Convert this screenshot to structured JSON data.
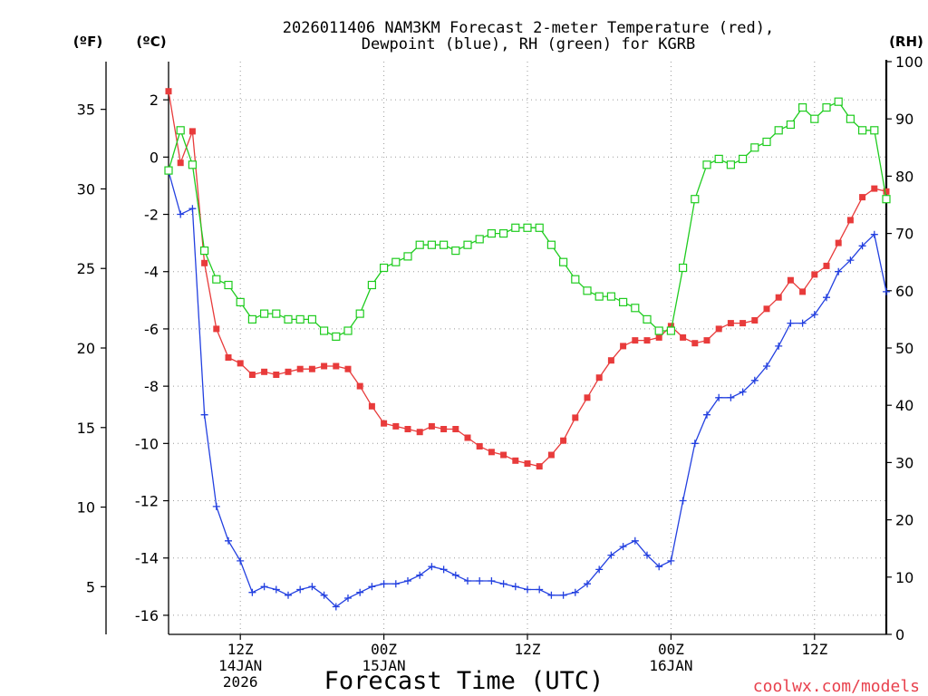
{
  "chart_data": {
    "type": "line",
    "title": [
      "2026011406 NAM3KM Forecast 2-meter Temperature (red),",
      "Dewpoint (blue), RH (green) for KGRB"
    ],
    "xlabel": "Forecast Time (UTC)",
    "grid": true,
    "x_range": [
      "2026-01-14T06:00Z",
      "2026-01-16T18:00Z"
    ],
    "x": [
      "2026-01-14T06:00Z",
      "2026-01-14T07:00Z",
      "2026-01-14T08:00Z",
      "2026-01-14T09:00Z",
      "2026-01-14T10:00Z",
      "2026-01-14T11:00Z",
      "2026-01-14T12:00Z",
      "2026-01-14T13:00Z",
      "2026-01-14T14:00Z",
      "2026-01-14T15:00Z",
      "2026-01-14T16:00Z",
      "2026-01-14T17:00Z",
      "2026-01-14T18:00Z",
      "2026-01-14T19:00Z",
      "2026-01-14T20:00Z",
      "2026-01-14T21:00Z",
      "2026-01-14T22:00Z",
      "2026-01-14T23:00Z",
      "2026-01-15T00:00Z",
      "2026-01-15T01:00Z",
      "2026-01-15T02:00Z",
      "2026-01-15T03:00Z",
      "2026-01-15T04:00Z",
      "2026-01-15T05:00Z",
      "2026-01-15T06:00Z",
      "2026-01-15T07:00Z",
      "2026-01-15T08:00Z",
      "2026-01-15T09:00Z",
      "2026-01-15T10:00Z",
      "2026-01-15T11:00Z",
      "2026-01-15T12:00Z",
      "2026-01-15T13:00Z",
      "2026-01-15T14:00Z",
      "2026-01-15T15:00Z",
      "2026-01-15T16:00Z",
      "2026-01-15T17:00Z",
      "2026-01-15T18:00Z",
      "2026-01-15T19:00Z",
      "2026-01-15T20:00Z",
      "2026-01-15T21:00Z",
      "2026-01-15T22:00Z",
      "2026-01-15T23:00Z",
      "2026-01-16T00:00Z",
      "2026-01-16T01:00Z",
      "2026-01-16T02:00Z",
      "2026-01-16T03:00Z",
      "2026-01-16T04:00Z",
      "2026-01-16T05:00Z",
      "2026-01-16T06:00Z",
      "2026-01-16T07:00Z",
      "2026-01-16T08:00Z",
      "2026-01-16T09:00Z",
      "2026-01-16T10:00Z",
      "2026-01-16T11:00Z",
      "2026-01-16T12:00Z",
      "2026-01-16T13:00Z",
      "2026-01-16T14:00Z",
      "2026-01-16T15:00Z",
      "2026-01-16T16:00Z",
      "2026-01-16T17:00Z",
      "2026-01-16T18:00Z"
    ],
    "x_ticks": [
      {
        "time": "2026-01-14T12:00Z",
        "label": [
          "12Z",
          "14JAN",
          "2026"
        ]
      },
      {
        "time": "2026-01-15T00:00Z",
        "label": [
          "00Z",
          "15JAN"
        ]
      },
      {
        "time": "2026-01-15T12:00Z",
        "label": [
          "12Z"
        ]
      },
      {
        "time": "2026-01-16T00:00Z",
        "label": [
          "00Z",
          "16JAN"
        ]
      },
      {
        "time": "2026-01-16T12:00Z",
        "label": [
          "12Z"
        ]
      }
    ],
    "y_left": {
      "label_F": "(ºF)",
      "label_C": "(ºC)",
      "range_F": [
        2,
        38
      ],
      "ticks_F": [
        35,
        30,
        25,
        20,
        15,
        10,
        5
      ],
      "ticks_C": [
        2,
        0,
        -2,
        -4,
        -6,
        -8,
        -10,
        -12,
        -14,
        -16
      ],
      "series": [
        {
          "color": "#e83b3b",
          "values": [
            2.3,
            -0.2,
            0.9,
            -3.7,
            -6.0,
            -7.0,
            -7.2,
            -7.6,
            -7.5,
            -7.6,
            -7.5,
            -7.4,
            -7.4,
            -7.3,
            -7.3,
            -7.4,
            -8.0,
            -8.7,
            -9.3,
            -9.4,
            -9.5,
            -9.6,
            -9.4,
            -9.5,
            -9.5,
            -9.8,
            -10.1,
            -10.3,
            -10.4,
            -10.6,
            -10.7,
            -10.8,
            -10.4,
            -9.9,
            -9.1,
            -8.4,
            -7.7,
            -7.1,
            -6.6,
            -6.4,
            -6.4,
            -6.3,
            -5.9,
            -6.3,
            -6.5,
            -6.4,
            -6.0,
            -5.8,
            -5.8,
            -5.7,
            -5.3,
            -4.9,
            -4.3,
            -4.7,
            -4.1,
            -3.8,
            -3.0,
            -2.2,
            -1.4,
            -1.1,
            -1.2
          ]
        },
        {
          "color": "#2340e0",
          "values": [
            -0.5,
            -2.0,
            -1.8,
            -9.0,
            -12.2,
            -13.4,
            -14.1,
            -15.2,
            -15.0,
            -15.1,
            -15.3,
            -15.1,
            -15.0,
            -15.3,
            -15.7,
            -15.4,
            -15.2,
            -15.0,
            -14.9,
            -14.9,
            -14.8,
            -14.6,
            -14.3,
            -14.4,
            -14.6,
            -14.8,
            -14.8,
            -14.8,
            -14.9,
            -15.0,
            -15.1,
            -15.1,
            -15.3,
            -15.3,
            -15.2,
            -14.9,
            -14.4,
            -13.9,
            -13.6,
            -13.4,
            -13.9,
            -14.3,
            -14.1,
            -12.0,
            -10.0,
            -9.0,
            -8.4,
            -8.4,
            -8.2,
            -7.8,
            -7.3,
            -6.6,
            -5.8,
            -5.8,
            -5.5,
            -4.9,
            -4.0,
            -3.6,
            -3.1,
            -2.7,
            -4.7
          ]
        }
      ]
    },
    "y_right": {
      "label": "(RH)",
      "range": [
        0,
        100
      ],
      "ticks": [
        0,
        10,
        20,
        30,
        40,
        50,
        60,
        70,
        80,
        90,
        100
      ],
      "series": [
        {
          "color": "#1fcc1f",
          "values": [
            81,
            88,
            82,
            67,
            62,
            61,
            58,
            55,
            56,
            56,
            55,
            55,
            55,
            53,
            52,
            53,
            56,
            61,
            64,
            65,
            66,
            68,
            68,
            68,
            67,
            68,
            69,
            70,
            70,
            71,
            71,
            71,
            68,
            65,
            62,
            60,
            59,
            59,
            58,
            57,
            55,
            53,
            53,
            64,
            76,
            82,
            83,
            82,
            83,
            85,
            86,
            88,
            89,
            92,
            90,
            92,
            93,
            90,
            88,
            88,
            76
          ]
        }
      ]
    }
  },
  "credit": {
    "text": "coolwx.com/models",
    "color": "#e8414d"
  }
}
